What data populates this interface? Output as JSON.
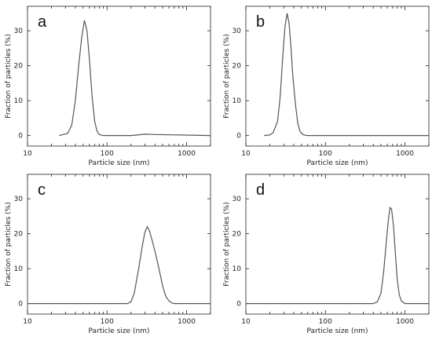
{
  "chart_data": [
    {
      "type": "line",
      "panel_label": "a",
      "xlabel": "Particle size (nm)",
      "ylabel": "Fraction of particles (%)",
      "xscale": "log",
      "xlim": [
        10,
        2000
      ],
      "ylim": [
        -3,
        37
      ],
      "xticks": [
        10,
        100,
        1000
      ],
      "yticks": [
        0,
        10,
        20,
        30
      ],
      "x": [
        25,
        28,
        32,
        36,
        40,
        44,
        48,
        52,
        56,
        60,
        65,
        70,
        75,
        80,
        90,
        100,
        200,
        300,
        400,
        2000
      ],
      "y": [
        0,
        0.3,
        0.6,
        3,
        10,
        20,
        28,
        33,
        30,
        22,
        11,
        4,
        1.2,
        0.3,
        0,
        0,
        0,
        0.4,
        0.3,
        0
      ]
    },
    {
      "type": "line",
      "panel_label": "b",
      "xlabel": "Particle size (nm)",
      "ylabel": "Fraction of particles (%)",
      "xscale": "log",
      "xlim": [
        10,
        2000
      ],
      "ylim": [
        -3,
        37
      ],
      "xticks": [
        10,
        100,
        1000
      ],
      "yticks": [
        0,
        10,
        20,
        30
      ],
      "x": [
        17,
        20,
        22,
        25,
        27,
        29,
        31,
        33,
        35,
        37,
        39,
        42,
        45,
        48,
        52,
        56,
        60,
        70,
        2000
      ],
      "y": [
        0,
        0.2,
        0.8,
        4,
        11,
        22,
        31,
        35,
        32,
        25,
        17,
        9,
        3.5,
        1.2,
        0.3,
        0.1,
        0,
        0,
        0
      ]
    },
    {
      "type": "line",
      "panel_label": "c",
      "xlabel": "Particle size (nm)",
      "ylabel": "Fraction of particles (%)",
      "xscale": "log",
      "xlim": [
        10,
        2000
      ],
      "ylim": [
        -3,
        37
      ],
      "xticks": [
        10,
        100,
        1000
      ],
      "yticks": [
        0,
        10,
        20,
        30
      ],
      "x": [
        10,
        180,
        200,
        220,
        250,
        280,
        300,
        320,
        340,
        370,
        400,
        450,
        500,
        550,
        600,
        650,
        700,
        2000
      ],
      "y": [
        0,
        0,
        0.5,
        3,
        10,
        17,
        20.5,
        22,
        21,
        18,
        15,
        10,
        5,
        2,
        0.8,
        0.2,
        0,
        0
      ]
    },
    {
      "type": "line",
      "panel_label": "d",
      "xlabel": "Particle size (nm)",
      "ylabel": "Fraction of particles (%)",
      "xscale": "log",
      "xlim": [
        10,
        2000
      ],
      "ylim": [
        -3,
        37
      ],
      "xticks": [
        10,
        100,
        1000
      ],
      "yticks": [
        0,
        10,
        20,
        30
      ],
      "x": [
        10,
        400,
        450,
        500,
        540,
        580,
        620,
        650,
        680,
        720,
        760,
        800,
        850,
        900,
        1000,
        2000
      ],
      "y": [
        0,
        0,
        0.5,
        3,
        9,
        17,
        24,
        27.5,
        27,
        22,
        14,
        7,
        2.5,
        0.8,
        0,
        0
      ]
    }
  ]
}
